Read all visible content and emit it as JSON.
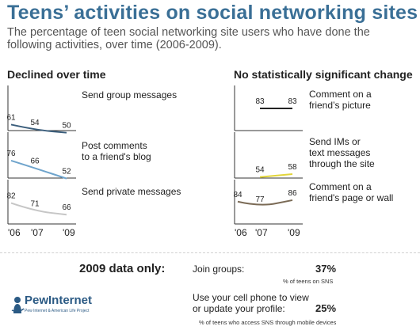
{
  "title": "Teens’ activities on social networking sites",
  "subtitle": "The percentage of teen social networking site users who have done the following activities, over time (2006-2009).",
  "colors": {
    "title": "#3a6f96",
    "brand": "#2b5a84"
  },
  "chart_data": [
    {
      "type": "line",
      "group": "Declined over time",
      "label": "Send group messages",
      "x": [
        "'06",
        "'07",
        "'09"
      ],
      "values": [
        61,
        54,
        50
      ],
      "color": "#3b5e7c"
    },
    {
      "type": "line",
      "group": "Declined over time",
      "label": "Post comments to a friend's blog",
      "x": [
        "'06",
        "'07",
        "'09"
      ],
      "values": [
        76,
        66,
        52
      ],
      "color": "#6fa4cc"
    },
    {
      "type": "line",
      "group": "Declined over time",
      "label": "Send private messages",
      "x": [
        "'06",
        "'07",
        "'09"
      ],
      "values": [
        82,
        71,
        66
      ],
      "color": "#c6c6c6"
    },
    {
      "type": "line",
      "group": "No statistically significant change",
      "label": "Comment on a friend’s picture",
      "x": [
        "'07",
        "'09"
      ],
      "values": [
        83,
        83
      ],
      "color": "#222222"
    },
    {
      "type": "line",
      "group": "No statistically significant change",
      "label": "Send IMs or text messages through the site",
      "x": [
        "'07",
        "'09"
      ],
      "values": [
        54,
        58
      ],
      "color": "#e2d53a"
    },
    {
      "type": "line",
      "group": "No statistically significant change",
      "label": "Comment on a friend's page or wall",
      "x": [
        "'06",
        "'07",
        "'09"
      ],
      "values": [
        84,
        77,
        86
      ],
      "color": "#7a6a55"
    }
  ],
  "sections": {
    "left": "Declined over time",
    "right": "No statistically significant change"
  },
  "labels": {
    "c1_l1": "Send group messages",
    "c2_l1": "Post comments",
    "c2_l2": "to a friend's blog",
    "c3_l1": "Send private messages",
    "c4_l1": "Comment on a",
    "c4_l2": "friend’s picture",
    "c5_l1": "Send IMs or",
    "c5_l2": "text messages",
    "c5_l3": "through the site",
    "c6_l1": "Comment on a",
    "c6_l2": "friend's page or wall"
  },
  "years": {
    "left": [
      "'06",
      "'07",
      "'09"
    ],
    "right": [
      "'06",
      "'07",
      "'09"
    ]
  },
  "data_2009": {
    "heading": "2009 data only:",
    "rows": [
      {
        "label": "Join groups:",
        "value": "37%",
        "note": "% of teens on SNS"
      },
      {
        "label_l1": "Use your cell phone to view",
        "label_l2": "or update your profile:",
        "value": "25%",
        "note": "% of teens who access SNS through mobile devices"
      }
    ]
  },
  "logo": {
    "name": "PewInternet",
    "tagline": "Pew Internet & American Life Project",
    "icon": "pew-logo-icon"
  }
}
